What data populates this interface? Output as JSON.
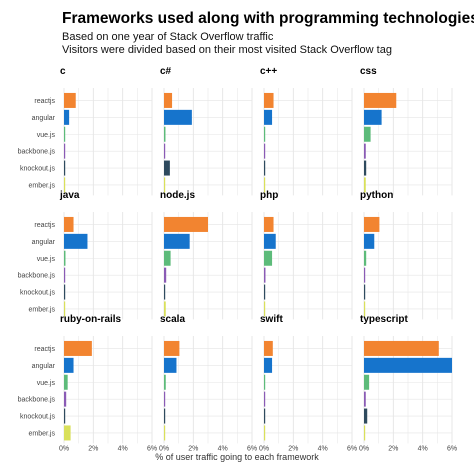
{
  "title": "Frameworks used along with programming technologies",
  "subtitle_lines": [
    "Based on one year of Stack Overflow traffic",
    "Visitors were divided based on their most visited Stack Overflow tag"
  ],
  "colors": {
    "reactjs": "#f28430",
    "angular": "#1674cc",
    "vue.js": "#5dbb7a",
    "backbone.js": "#8a5bb5",
    "knockout.js": "#2e4a5e",
    "ember.js": "#d9e05a",
    "grid": "#e5e5e5"
  },
  "chart_data": {
    "type": "bar",
    "orientation": "horizontal",
    "layout": "facet-grid 3x4",
    "categories": [
      "reactjs",
      "angular",
      "vue.js",
      "backbone.js",
      "knockout.js",
      "ember.js"
    ],
    "xlabel": "% of user traffic going to each framework",
    "ylabel": "",
    "xlim": [
      0,
      6
    ],
    "x_ticks": [
      "0%",
      "2%",
      "4%",
      "6%"
    ],
    "grid": true,
    "legend": "none",
    "facets": [
      {
        "name": "c",
        "values": [
          0.8,
          0.35,
          0.08,
          0.05,
          0.05,
          0.03
        ]
      },
      {
        "name": "c#",
        "values": [
          0.55,
          1.9,
          0.1,
          0.06,
          0.4,
          0.04
        ]
      },
      {
        "name": "c++",
        "values": [
          0.65,
          0.55,
          0.08,
          0.05,
          0.08,
          0.03
        ]
      },
      {
        "name": "css",
        "values": [
          2.2,
          1.2,
          0.45,
          0.12,
          0.15,
          0.12
        ]
      },
      {
        "name": "java",
        "values": [
          0.65,
          1.6,
          0.1,
          0.06,
          0.06,
          0.04
        ]
      },
      {
        "name": "node.js",
        "values": [
          3.0,
          1.75,
          0.45,
          0.15,
          0.06,
          0.12
        ]
      },
      {
        "name": "php",
        "values": [
          0.65,
          0.8,
          0.55,
          0.1,
          0.06,
          0.06
        ]
      },
      {
        "name": "python",
        "values": [
          1.05,
          0.7,
          0.15,
          0.05,
          0.04,
          0.03
        ]
      },
      {
        "name": "ruby-on-rails",
        "values": [
          1.9,
          0.65,
          0.25,
          0.15,
          0.08,
          0.45
        ]
      },
      {
        "name": "scala",
        "values": [
          1.05,
          0.85,
          0.12,
          0.06,
          0.04,
          0.04
        ]
      },
      {
        "name": "swift",
        "values": [
          0.6,
          0.55,
          0.05,
          0.03,
          0.03,
          0.03
        ]
      },
      {
        "name": "typescript",
        "values": [
          5.1,
          6.0,
          0.35,
          0.12,
          0.22,
          0.08
        ]
      }
    ]
  }
}
